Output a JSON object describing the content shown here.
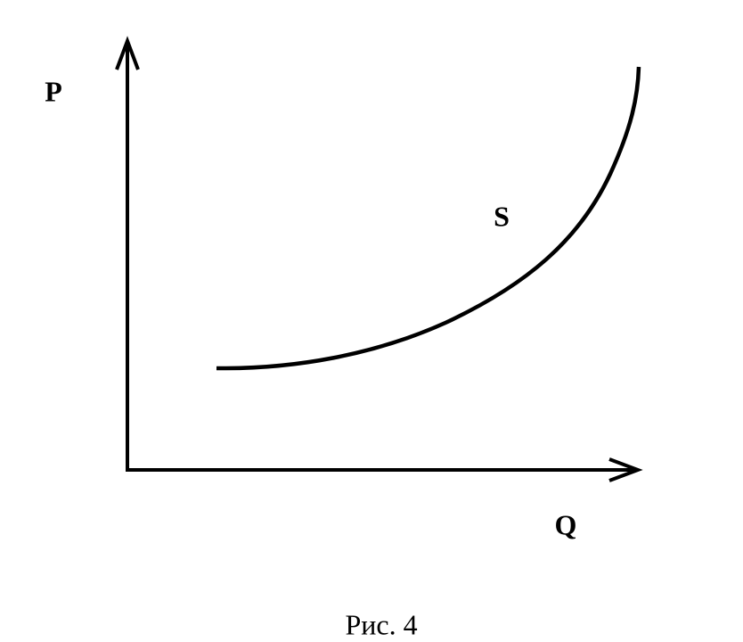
{
  "axes": {
    "y_label": "P",
    "x_label": "Q"
  },
  "curve": {
    "label": "S"
  },
  "caption": "Рис. 4"
}
